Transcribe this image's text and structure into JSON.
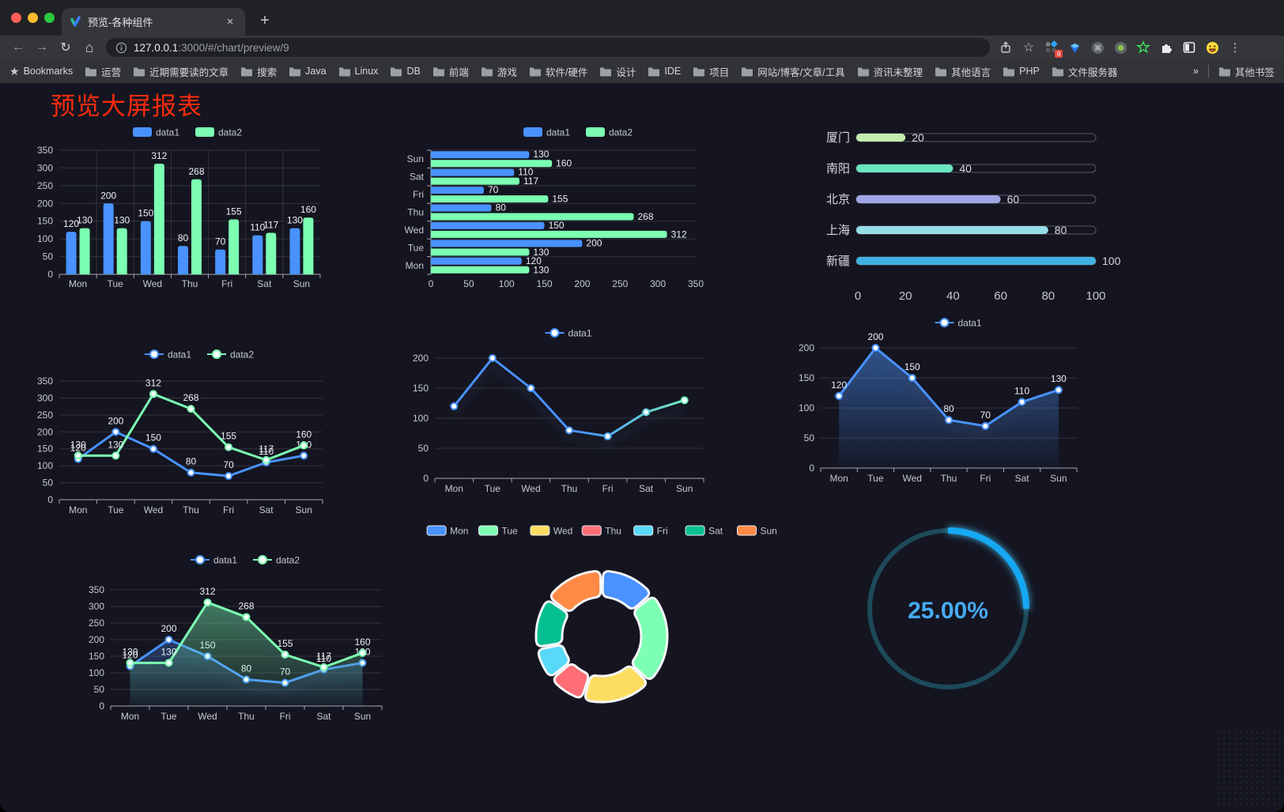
{
  "browser": {
    "tab": {
      "title": "预览-各种组件",
      "close_icon": "×",
      "new_tab_icon": "+"
    },
    "url": {
      "host": "127.0.0.1",
      "rest": ":3000/#/chart/preview/9"
    },
    "extensions_badge": "9",
    "bookmarks_label": "Bookmarks",
    "bookmarks": [
      "运营",
      "近期需要读的文章",
      "搜索",
      "Java",
      "Linux",
      "DB",
      "前端",
      "游戏",
      "软件/硬件",
      "设计",
      "IDE",
      "项目",
      "网站/博客/文章/工具",
      "资讯未整理",
      "其他语言",
      "PHP",
      "文件服务器"
    ],
    "bookmarks_overflow": "»",
    "other_bookmarks": "其他书签"
  },
  "page": {
    "title": "预览大屏报表",
    "title_color": "#fe2b0d",
    "background": "#141520"
  },
  "chart_data": [
    {
      "id": "grouped-bar",
      "type": "bar",
      "categories": [
        "Mon",
        "Tue",
        "Wed",
        "Thu",
        "Fri",
        "Sat",
        "Sun"
      ],
      "series": [
        {
          "name": "data1",
          "color": "#4992ff",
          "values": [
            120,
            200,
            150,
            80,
            70,
            110,
            130
          ]
        },
        {
          "name": "data2",
          "color": "#7cffb2",
          "values": [
            130,
            130,
            312,
            268,
            155,
            117,
            160
          ]
        }
      ],
      "ylim": [
        0,
        350
      ],
      "ytick_step": 50,
      "legend_position": "top",
      "value_labels": true
    },
    {
      "id": "grouped-horizontal-bar",
      "type": "hbar",
      "categories": [
        "Mon",
        "Tue",
        "Wed",
        "Thu",
        "Fri",
        "Sat",
        "Sun"
      ],
      "row_order": "reversed",
      "series": [
        {
          "name": "data1",
          "color": "#4992ff",
          "values": [
            120,
            200,
            150,
            80,
            70,
            110,
            130
          ]
        },
        {
          "name": "data2",
          "color": "#7cffb2",
          "values": [
            130,
            130,
            312,
            268,
            155,
            117,
            160
          ]
        }
      ],
      "xlim": [
        0,
        350
      ],
      "xtick_step": 50,
      "value_labels": true
    },
    {
      "id": "progress-bars",
      "type": "progress",
      "rows": [
        {
          "label": "厦门",
          "value": 20,
          "color": "#c4ebad"
        },
        {
          "label": "南阳",
          "value": 40,
          "color": "#6be6c1"
        },
        {
          "label": "北京",
          "value": 60,
          "color": "#a0a7e6"
        },
        {
          "label": "上海",
          "value": 80,
          "color": "#96dee8"
        },
        {
          "label": "新疆",
          "value": 100,
          "color": "#3fb1e3"
        }
      ],
      "xlim": [
        0,
        100
      ],
      "xticks": [
        0,
        20,
        40,
        60,
        80,
        100
      ]
    },
    {
      "id": "line-two-series",
      "type": "line",
      "categories": [
        "Mon",
        "Tue",
        "Wed",
        "Thu",
        "Fri",
        "Sat",
        "Sun"
      ],
      "series": [
        {
          "name": "data1",
          "color": "#4992ff",
          "values": [
            120,
            200,
            150,
            80,
            70,
            110,
            130
          ]
        },
        {
          "name": "data2",
          "color": "#7cffb2",
          "values": [
            130,
            130,
            312,
            268,
            155,
            117,
            160
          ]
        }
      ],
      "ylim": [
        0,
        350
      ],
      "ytick_step": 50,
      "value_labels": true,
      "shadow": false
    },
    {
      "id": "line-gradient",
      "type": "line",
      "categories": [
        "Mon",
        "Tue",
        "Wed",
        "Thu",
        "Fri",
        "Sat",
        "Sun"
      ],
      "series": [
        {
          "name": "data1",
          "color": "#4992ff",
          "gradient": [
            "#4992ff",
            "#7cffb2"
          ],
          "values": [
            120,
            200,
            150,
            80,
            70,
            110,
            130
          ]
        }
      ],
      "ylim": [
        0,
        200
      ],
      "ytick_step": 50,
      "value_labels": false,
      "shadow": true
    },
    {
      "id": "area-line",
      "type": "line",
      "categories": [
        "Mon",
        "Tue",
        "Wed",
        "Thu",
        "Fri",
        "Sat",
        "Sun"
      ],
      "series": [
        {
          "name": "data1",
          "color": "#4992ff",
          "area": true,
          "values": [
            120,
            200,
            150,
            80,
            70,
            110,
            130
          ]
        }
      ],
      "ylim": [
        0,
        200
      ],
      "ytick_step": 50,
      "value_labels": true,
      "shadow": true
    },
    {
      "id": "two-area-lines",
      "type": "line",
      "categories": [
        "Mon",
        "Tue",
        "Wed",
        "Thu",
        "Fri",
        "Sat",
        "Sun"
      ],
      "series": [
        {
          "name": "data1",
          "color": "#4992ff",
          "area": true,
          "values": [
            120,
            200,
            150,
            80,
            70,
            110,
            130
          ]
        },
        {
          "name": "data2",
          "color": "#7cffb2",
          "area": true,
          "values": [
            130,
            130,
            312,
            268,
            155,
            117,
            160
          ]
        }
      ],
      "ylim": [
        0,
        350
      ],
      "ytick_step": 50,
      "value_labels": true,
      "shadow": true
    },
    {
      "id": "doughnut",
      "type": "doughnut",
      "categories": [
        "Mon",
        "Tue",
        "Wed",
        "Thu",
        "Fri",
        "Sat",
        "Sun"
      ],
      "values": [
        120,
        200,
        150,
        80,
        70,
        110,
        130
      ],
      "colors": [
        "#4992ff",
        "#7cffb2",
        "#fddd60",
        "#ff6e76",
        "#58d9f9",
        "#05c091",
        "#ff8a45"
      ],
      "legend_position": "top"
    },
    {
      "id": "gauge",
      "type": "gauge",
      "value": 25,
      "label": "25.00%",
      "progress_color": "#18a8f2",
      "track_color": "#1d4a59",
      "text_color": "#46aaf2"
    }
  ]
}
